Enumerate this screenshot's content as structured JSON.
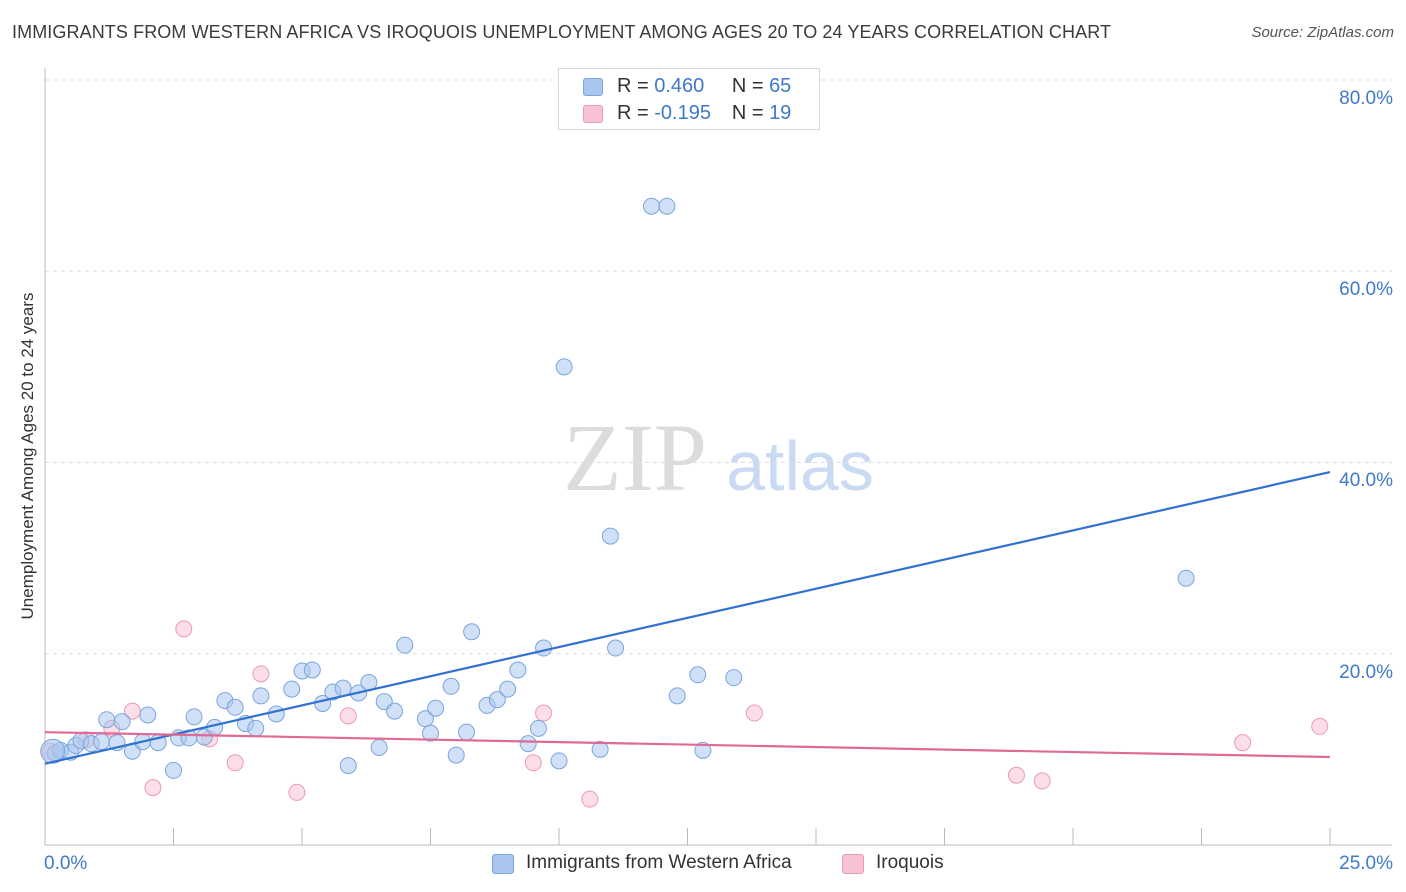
{
  "title": "IMMIGRANTS FROM WESTERN AFRICA VS IROQUOIS UNEMPLOYMENT AMONG AGES 20 TO 24 YEARS CORRELATION CHART",
  "source": "Source: ZipAtlas.com",
  "watermark": {
    "zip": "ZIP",
    "atlas": "atlas"
  },
  "legend": {
    "series1": {
      "r_label": "R =",
      "r_value": "0.460",
      "n_label": "N =",
      "n_value": "65"
    },
    "series2": {
      "r_label": "R =",
      "r_value": "-0.195",
      "n_label": "N =",
      "n_value": "19"
    }
  },
  "bottom_legend": {
    "series1": "Immigrants from Western Africa",
    "series2": "Iroquois"
  },
  "colors": {
    "series1_fill": "#a9c6ef",
    "series1_stroke": "#7aa5df",
    "series1_line": "#2f72d0",
    "series2_fill": "#f7c2d3",
    "series2_stroke": "#ec9ab5",
    "series2_line": "#e06a93",
    "axis_text": "#3f79c9",
    "grid": "#dddddd"
  },
  "chart_data": {
    "type": "scatter",
    "title": "IMMIGRANTS FROM WESTERN AFRICA VS IROQUOIS UNEMPLOYMENT AMONG AGES 20 TO 24 YEARS CORRELATION CHART",
    "xlabel": "",
    "ylabel": "Unemployment Among Ages 20 to 24 years",
    "xlim": [
      0,
      25
    ],
    "ylim": [
      0,
      80
    ],
    "x_tick_labels": [
      "0.0%",
      "25.0%"
    ],
    "y_ticks": [
      20,
      40,
      60,
      80
    ],
    "y_tick_labels": [
      "20.0%",
      "40.0%",
      "60.0%",
      "80.0%"
    ],
    "series": [
      {
        "name": "Immigrants from Western Africa",
        "R": 0.46,
        "N": 65,
        "trend": {
          "x": [
            0,
            25
          ],
          "y": [
            8.5,
            39
          ]
        },
        "points": [
          [
            0.2,
            9.6
          ],
          [
            0.3,
            9.9
          ],
          [
            0.5,
            9.7
          ],
          [
            0.6,
            10.4
          ],
          [
            0.7,
            10.9
          ],
          [
            0.9,
            10.6
          ],
          [
            1.1,
            10.8
          ],
          [
            1.2,
            13.1
          ],
          [
            1.4,
            10.7
          ],
          [
            1.5,
            12.9
          ],
          [
            1.7,
            9.8
          ],
          [
            1.9,
            10.8
          ],
          [
            2.0,
            13.6
          ],
          [
            2.2,
            10.7
          ],
          [
            2.5,
            7.8
          ],
          [
            2.6,
            11.2
          ],
          [
            2.8,
            11.2
          ],
          [
            2.9,
            13.4
          ],
          [
            3.1,
            11.3
          ],
          [
            3.3,
            12.3
          ],
          [
            3.5,
            15.1
          ],
          [
            3.7,
            14.4
          ],
          [
            3.9,
            12.7
          ],
          [
            4.1,
            12.2
          ],
          [
            4.2,
            15.6
          ],
          [
            4.5,
            13.7
          ],
          [
            4.8,
            16.3
          ],
          [
            5.0,
            18.2
          ],
          [
            5.2,
            18.3
          ],
          [
            5.4,
            14.8
          ],
          [
            5.6,
            16.0
          ],
          [
            5.8,
            16.4
          ],
          [
            5.9,
            8.3
          ],
          [
            6.1,
            15.9
          ],
          [
            6.3,
            17.0
          ],
          [
            6.5,
            10.2
          ],
          [
            6.6,
            15.0
          ],
          [
            6.8,
            14.0
          ],
          [
            7.0,
            20.9
          ],
          [
            7.4,
            13.2
          ],
          [
            7.5,
            11.7
          ],
          [
            7.6,
            14.3
          ],
          [
            7.9,
            16.6
          ],
          [
            8.0,
            9.4
          ],
          [
            8.2,
            11.8
          ],
          [
            8.3,
            22.3
          ],
          [
            8.6,
            14.6
          ],
          [
            8.8,
            15.2
          ],
          [
            9.0,
            16.3
          ],
          [
            9.2,
            18.3
          ],
          [
            9.4,
            10.6
          ],
          [
            9.6,
            12.2
          ],
          [
            9.7,
            20.6
          ],
          [
            10.0,
            8.8
          ],
          [
            10.1,
            50.0
          ],
          [
            10.8,
            10.0
          ],
          [
            11.0,
            32.3
          ],
          [
            11.1,
            20.6
          ],
          [
            11.8,
            66.8
          ],
          [
            12.1,
            66.8
          ],
          [
            12.3,
            15.6
          ],
          [
            12.7,
            17.8
          ],
          [
            12.8,
            9.9
          ],
          [
            13.4,
            17.5
          ],
          [
            22.2,
            27.9
          ]
        ]
      },
      {
        "name": "Iroquois",
        "R": -0.195,
        "N": 19,
        "trend": {
          "x": [
            0,
            25
          ],
          "y": [
            11.8,
            9.2
          ]
        },
        "points": [
          [
            0.1,
            9.8
          ],
          [
            0.8,
            11.0
          ],
          [
            1.3,
            12.2
          ],
          [
            1.7,
            14.0
          ],
          [
            2.1,
            6.0
          ],
          [
            2.7,
            22.6
          ],
          [
            3.2,
            11.1
          ],
          [
            3.7,
            8.6
          ],
          [
            4.2,
            17.9
          ],
          [
            4.9,
            5.5
          ],
          [
            5.9,
            13.5
          ],
          [
            9.5,
            8.6
          ],
          [
            9.7,
            13.8
          ],
          [
            10.6,
            4.8
          ],
          [
            13.8,
            13.8
          ],
          [
            18.9,
            7.3
          ],
          [
            19.4,
            6.7
          ],
          [
            23.3,
            10.7
          ],
          [
            24.8,
            12.4
          ]
        ]
      }
    ]
  }
}
